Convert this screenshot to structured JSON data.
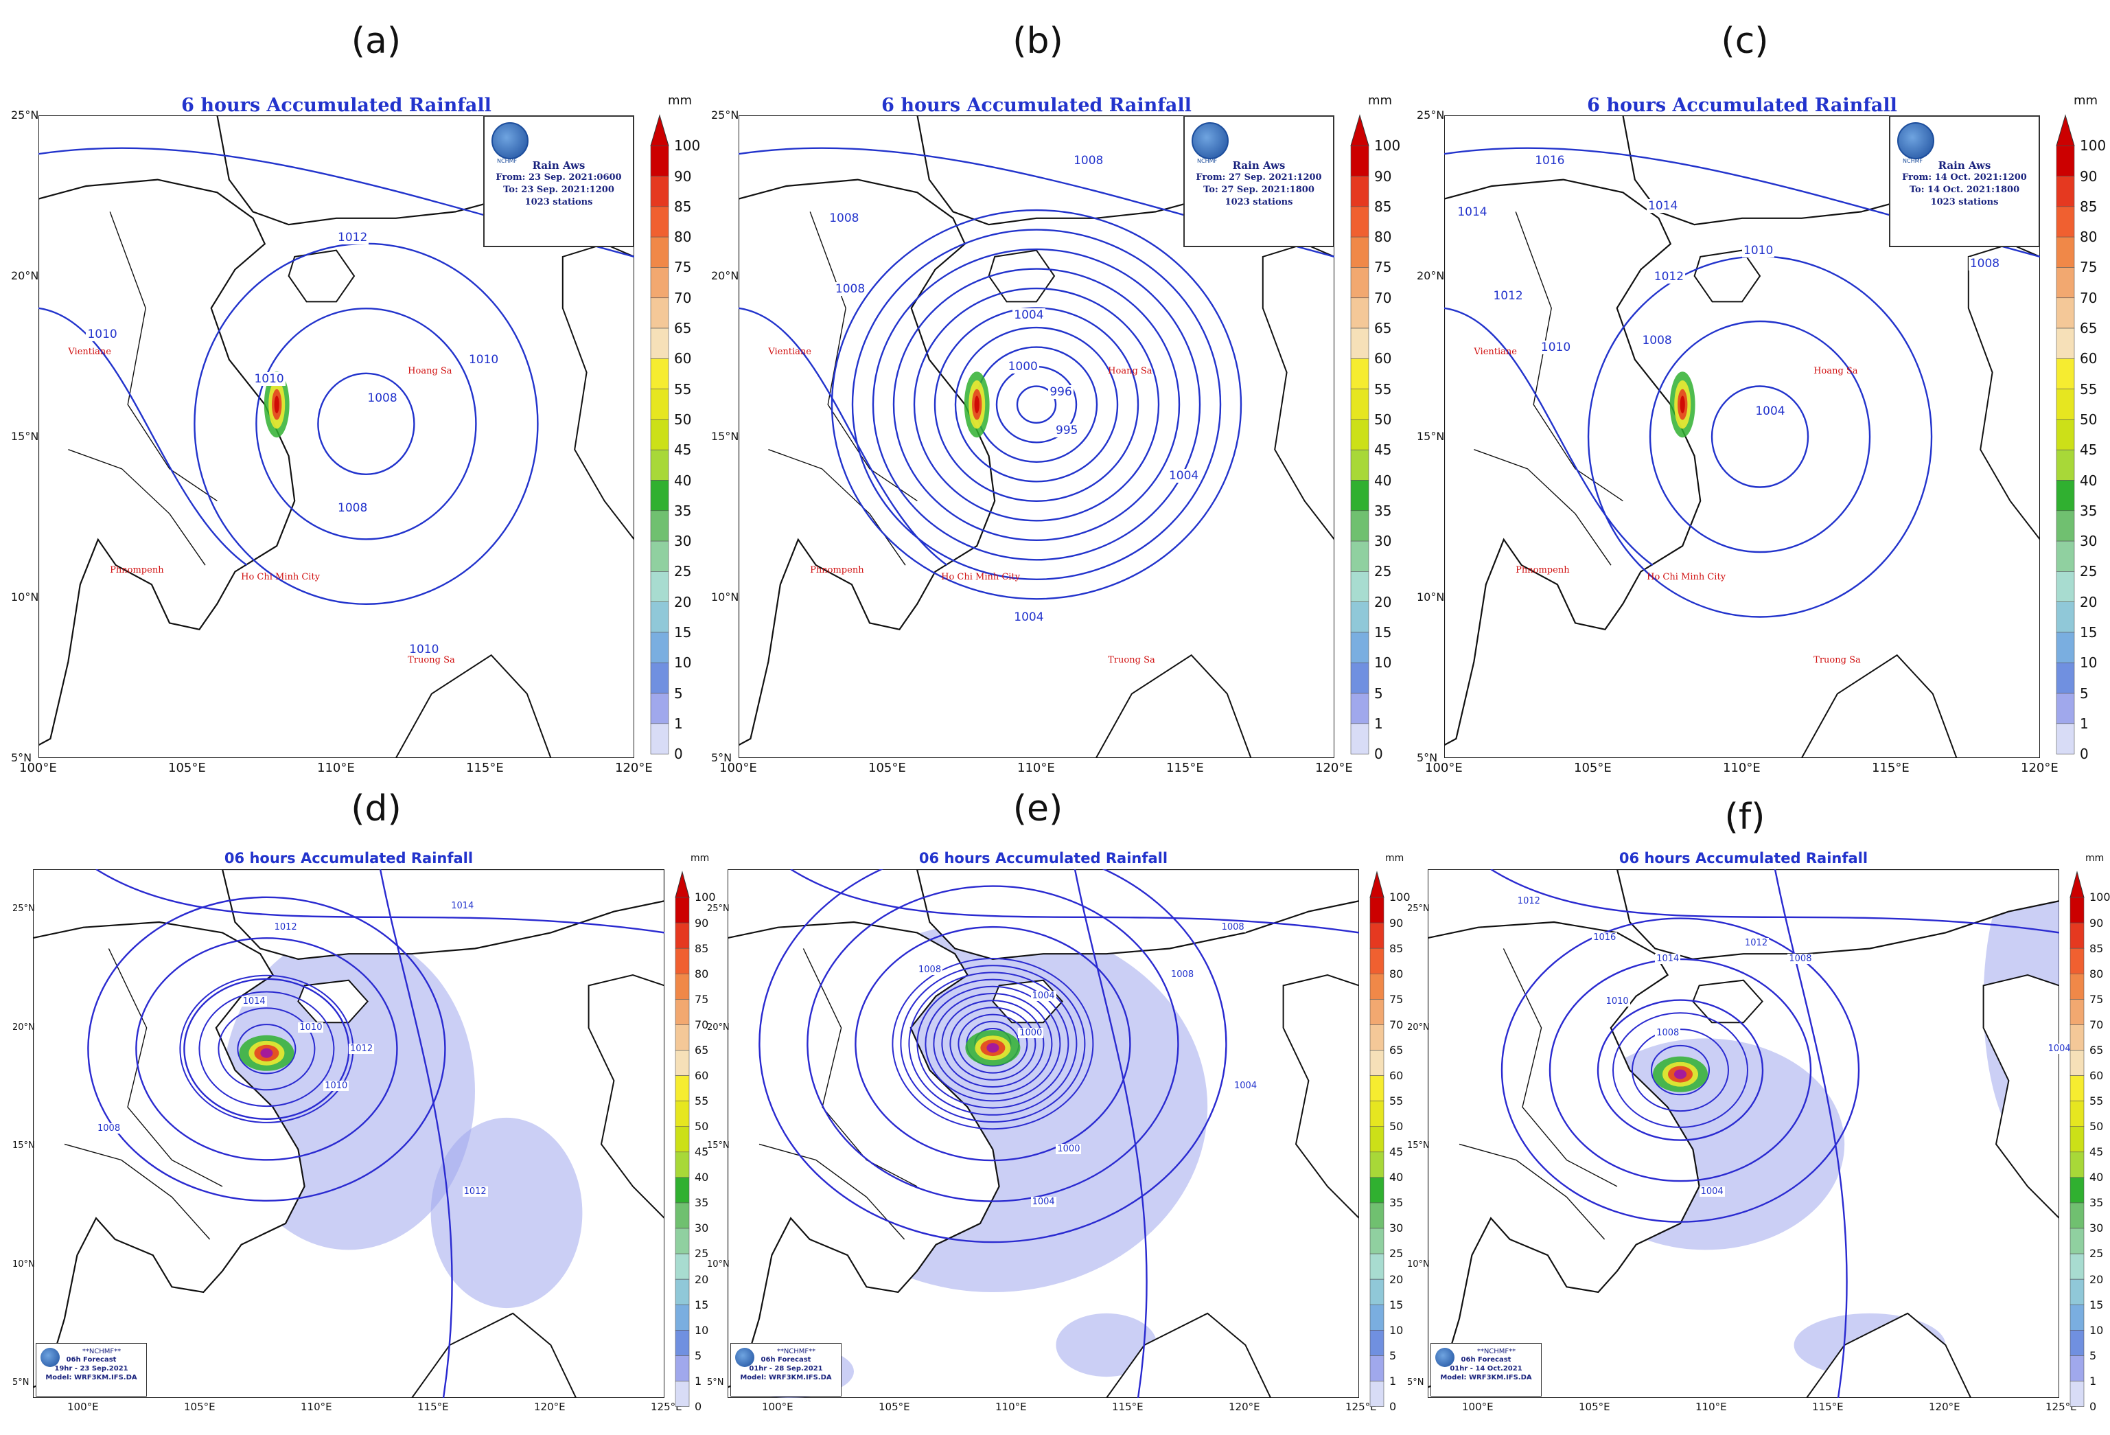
{
  "figure_labels": [
    "(a)",
    "(b)",
    "(c)",
    "(d)",
    "(e)",
    "(f)"
  ],
  "observed": {
    "title": "6 hours Accumulated Rainfall",
    "source_title": "Rain Aws",
    "logo_name": "NCHMF",
    "x_ticks": [
      "100°E",
      "105°E",
      "110°E",
      "115°E",
      "120°E"
    ],
    "y_ticks": [
      "25°N",
      "20°N",
      "15°N",
      "10°N",
      "5°N"
    ],
    "panels": [
      {
        "from": "From: 23 Sep. 2021:0600",
        "to": "To: 23 Sep. 2021:1200",
        "stations": "1023 stations",
        "isobar_labels": [
          "1012",
          "1010",
          "1010",
          "1008",
          "1010",
          "1008",
          "1010"
        ]
      },
      {
        "from": "From: 27 Sep. 2021:1200",
        "to": "To: 27 Sep. 2021:1800",
        "stations": "1023 stations",
        "isobar_labels": [
          "1008",
          "1008",
          "1008",
          "1004",
          "1000",
          "996",
          "995",
          "1004",
          "1004"
        ]
      },
      {
        "from": "From: 14 Oct. 2021:1200",
        "to": "To: 14 Oct. 2021:1800",
        "stations": "1023 stations",
        "isobar_labels": [
          "1014",
          "1016",
          "1014",
          "1012",
          "1012",
          "1010",
          "1010",
          "1008",
          "1004",
          "1008"
        ]
      }
    ],
    "cities": [
      "Hoang Sa",
      "Truong Sa",
      "Phnompenh",
      "Ho Chi Minh City",
      "Vientiane"
    ]
  },
  "forecast": {
    "title": "06 hours Accumulated Rainfall",
    "x_ticks": [
      "100°E",
      "105°E",
      "110°E",
      "115°E",
      "120°E",
      "125°E"
    ],
    "y_ticks": [
      "25°N",
      "20°N",
      "15°N",
      "10°N",
      "5°N"
    ],
    "box_name": "**NCHMF**",
    "panels": [
      {
        "lead": "06h Forecast",
        "valid": "19hr - 23 Sep.2021",
        "model": "Model: WRF3KM.IFS.DA",
        "isobar_labels": [
          "1012",
          "1014",
          "1014",
          "1012",
          "1010",
          "1008",
          "1010",
          "1012"
        ]
      },
      {
        "lead": "06h Forecast",
        "valid": "01hr - 28 Sep.2021",
        "model": "Model: WRF3KM.IFS.DA",
        "isobar_labels": [
          "1008",
          "1008",
          "1004",
          "1000",
          "1004",
          "1004",
          "1008",
          "1000"
        ]
      },
      {
        "lead": "06h Forecast",
        "valid": "01hr - 14 Oct.2021",
        "model": "Model: WRF3KM.IFS.DA",
        "isobar_labels": [
          "1012",
          "1016",
          "1014",
          "1012",
          "1010",
          "1008",
          "1004",
          "1004",
          "1008"
        ]
      }
    ]
  },
  "colorbar": {
    "unit": "mm",
    "ticks": [
      "100",
      "90",
      "85",
      "80",
      "75",
      "70",
      "65",
      "60",
      "55",
      "50",
      "45",
      "40",
      "35",
      "30",
      "25",
      "20",
      "15",
      "10",
      "5",
      "1",
      "0"
    ],
    "colors": [
      "#cc0000",
      "#e53920",
      "#f06030",
      "#f08848",
      "#f2a870",
      "#f4c898",
      "#f6e0b8",
      "#f6ec30",
      "#e6e620",
      "#cce018",
      "#a8d838",
      "#30b030",
      "#70c070",
      "#90d0a0",
      "#a8dcd0",
      "#90c8d8",
      "#7aaee0",
      "#7090e0",
      "#a0a8ec",
      "#d8dcf6"
    ],
    "accent_blue": "#2233cc",
    "accent_red": "#d01010"
  }
}
